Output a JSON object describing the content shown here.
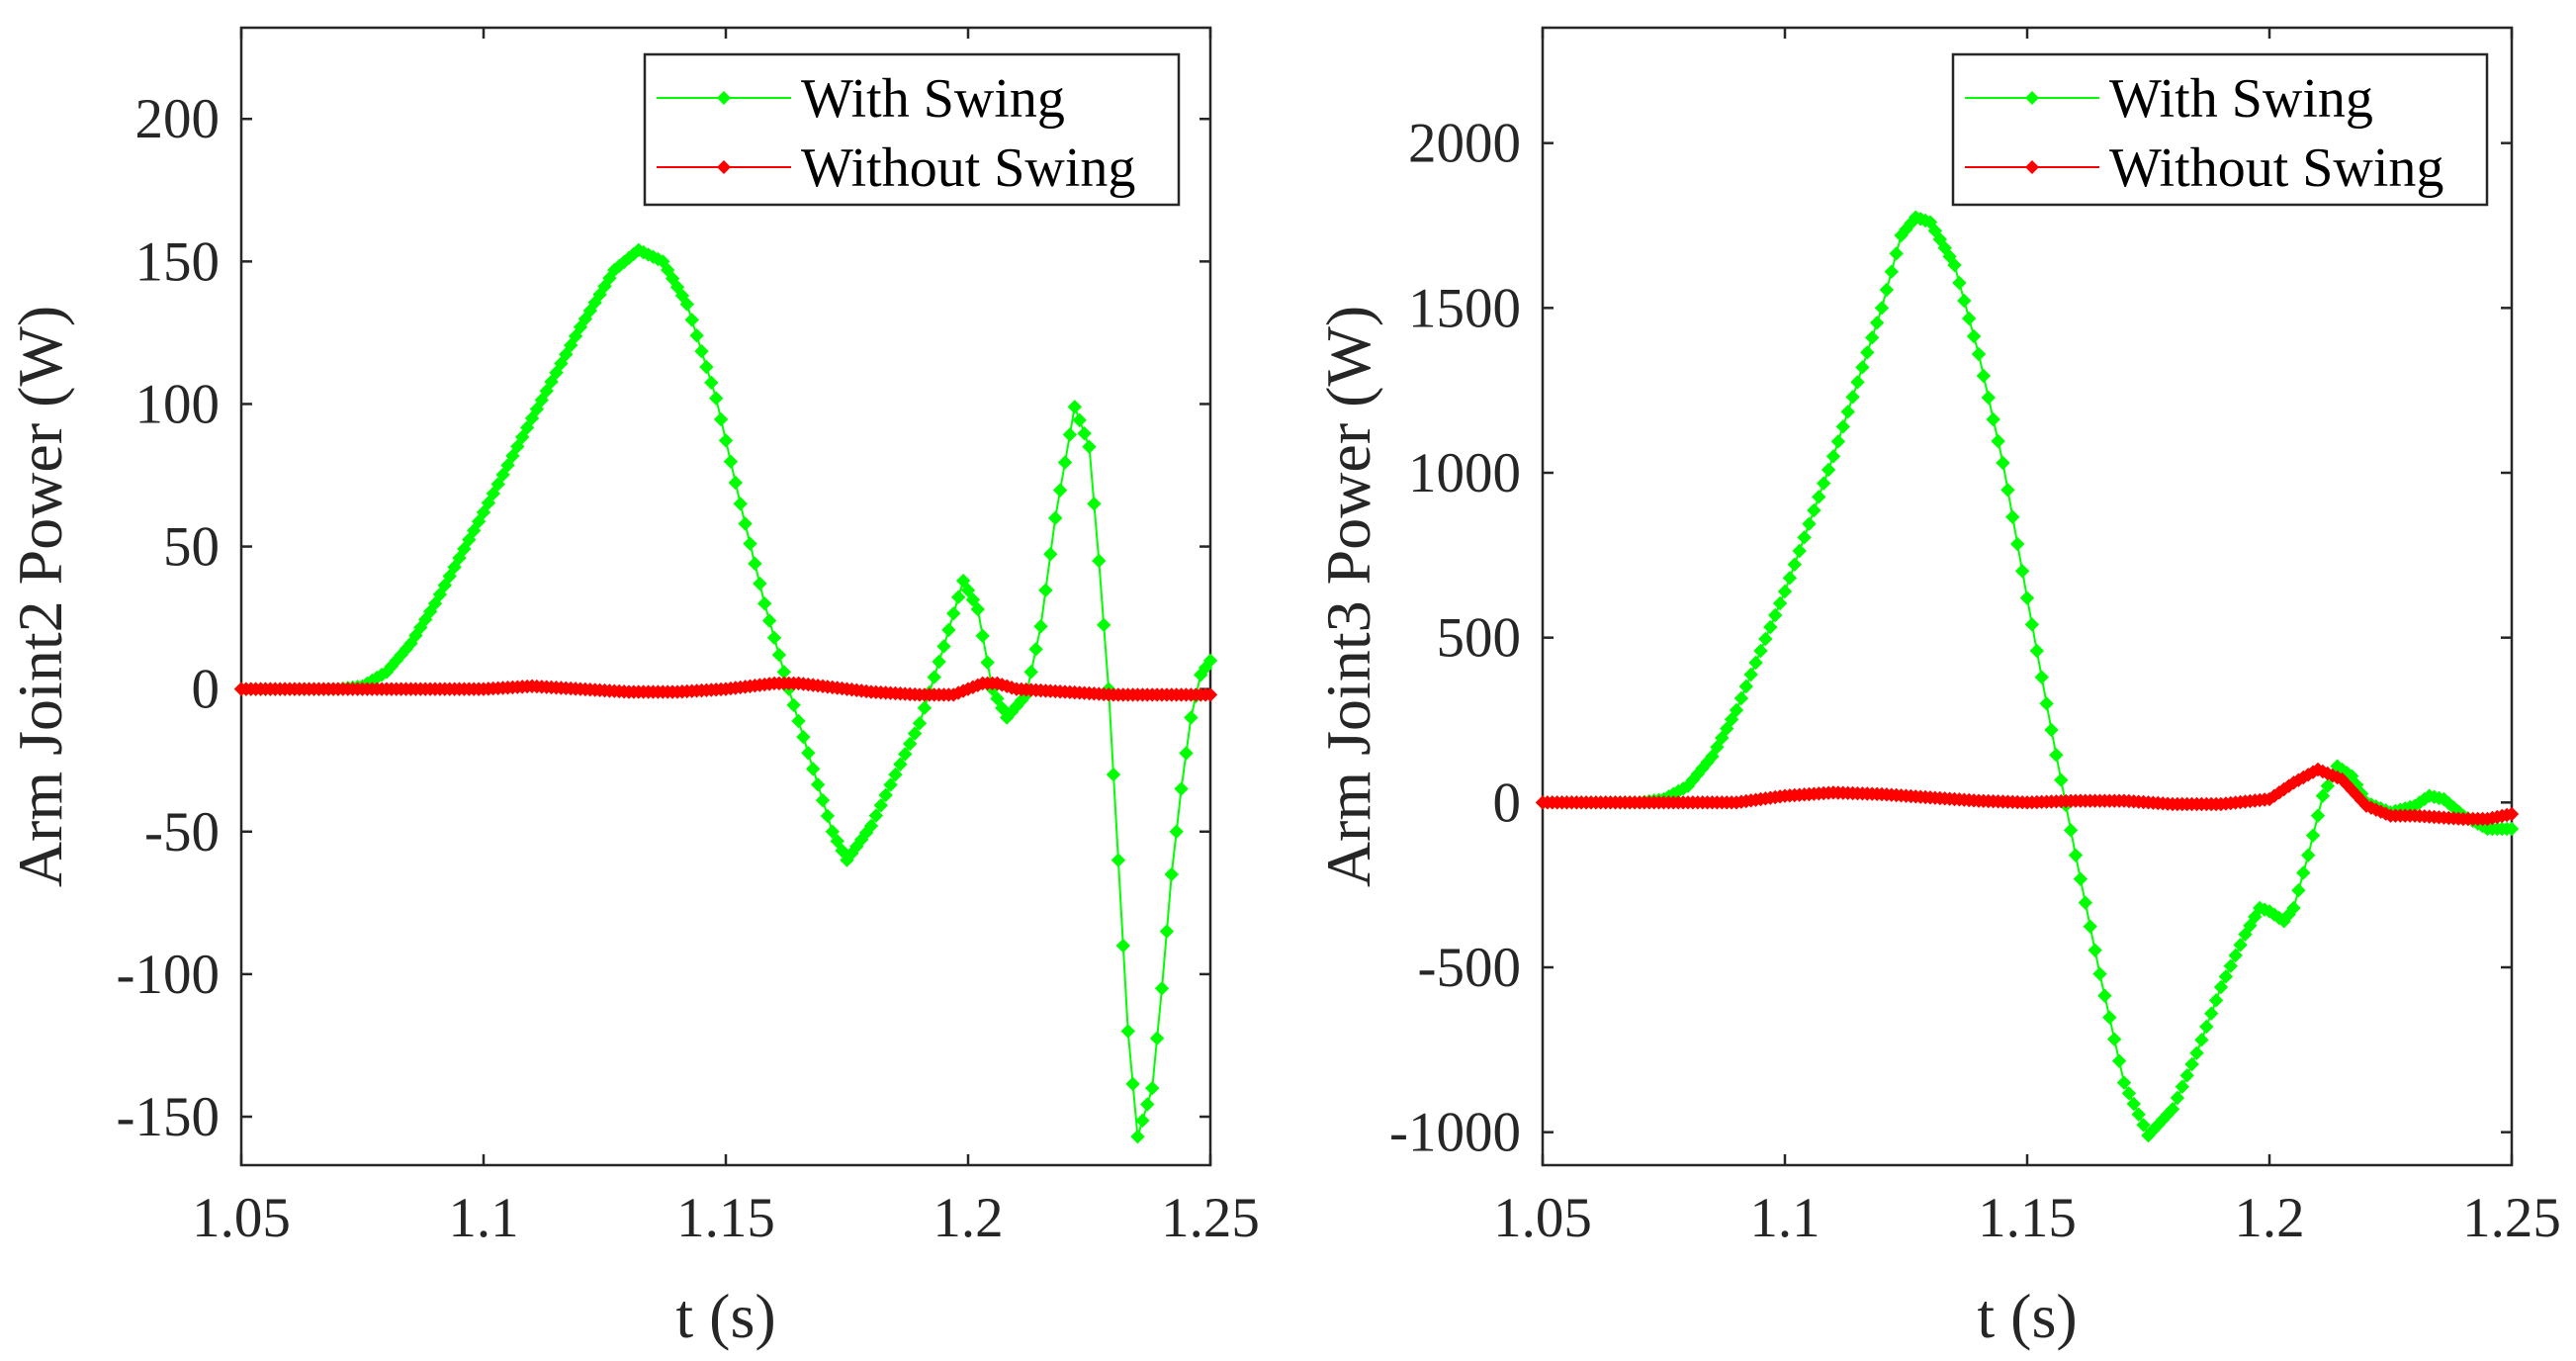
{
  "figure": {
    "charts": 2
  },
  "chart_data": [
    {
      "type": "line",
      "title": "",
      "xlabel": "t (s)",
      "ylabel": "Arm Joint2 Power (W)",
      "xlim": [
        1.05,
        1.25
      ],
      "ylim": [
        -167,
        232
      ],
      "xticks": [
        1.05,
        1.1,
        1.15,
        1.2,
        1.25
      ],
      "xtick_labels": [
        "1.05",
        "1.1",
        "1.15",
        "1.2",
        "1.25"
      ],
      "yticks": [
        200,
        150,
        100,
        50,
        0,
        -50,
        -100,
        -150
      ],
      "ytick_labels": [
        "200",
        "150",
        "100",
        "50",
        "0",
        "-50",
        "-100",
        "-150"
      ],
      "grid": false,
      "legend_position": "top-right",
      "series": [
        {
          "name": "With Swing",
          "color": "#00ff00",
          "marker": "diamond",
          "points": [
            [
              1.05,
              0
            ],
            [
              1.07,
              0
            ],
            [
              1.075,
              1
            ],
            [
              1.08,
              6
            ],
            [
              1.085,
              16
            ],
            [
              1.09,
              30
            ],
            [
              1.1,
              62
            ],
            [
              1.11,
              95
            ],
            [
              1.12,
              127
            ],
            [
              1.127,
              147
            ],
            [
              1.132,
              154
            ],
            [
              1.137,
              150
            ],
            [
              1.142,
              135
            ],
            [
              1.148,
              102
            ],
            [
              1.153,
              65
            ],
            [
              1.158,
              30
            ],
            [
              1.163,
              0
            ],
            [
              1.168,
              -28
            ],
            [
              1.172,
              -50
            ],
            [
              1.175,
              -60
            ],
            [
              1.18,
              -48
            ],
            [
              1.185,
              -30
            ],
            [
              1.19,
              -12
            ],
            [
              1.195,
              15
            ],
            [
              1.199,
              38
            ],
            [
              1.202,
              28
            ],
            [
              1.205,
              0
            ],
            [
              1.208,
              -10
            ],
            [
              1.212,
              -2
            ],
            [
              1.215,
              22
            ],
            [
              1.218,
              60
            ],
            [
              1.222,
              99
            ],
            [
              1.225,
              85
            ],
            [
              1.227,
              45
            ],
            [
              1.229,
              0
            ],
            [
              1.231,
              -60
            ],
            [
              1.233,
              -120
            ],
            [
              1.235,
              -157
            ],
            [
              1.238,
              -140
            ],
            [
              1.24,
              -105
            ],
            [
              1.242,
              -65
            ],
            [
              1.244,
              -35
            ],
            [
              1.246,
              -10
            ],
            [
              1.248,
              5
            ],
            [
              1.25,
              10
            ]
          ]
        },
        {
          "name": "Without Swing",
          "color": "#ff0000",
          "marker": "diamond",
          "points": [
            [
              1.05,
              0
            ],
            [
              1.08,
              0
            ],
            [
              1.1,
              0
            ],
            [
              1.11,
              1
            ],
            [
              1.12,
              0
            ],
            [
              1.13,
              -1
            ],
            [
              1.14,
              -1
            ],
            [
              1.15,
              0
            ],
            [
              1.16,
              2
            ],
            [
              1.165,
              2
            ],
            [
              1.17,
              1
            ],
            [
              1.18,
              -1
            ],
            [
              1.19,
              -2
            ],
            [
              1.197,
              -2
            ],
            [
              1.2,
              0
            ],
            [
              1.203,
              2
            ],
            [
              1.206,
              2
            ],
            [
              1.21,
              0
            ],
            [
              1.22,
              -1
            ],
            [
              1.23,
              -2
            ],
            [
              1.24,
              -2
            ],
            [
              1.25,
              -2
            ]
          ]
        }
      ]
    },
    {
      "type": "line",
      "title": "",
      "xlabel": "t (s)",
      "ylabel": "Arm Joint3 Power (W)",
      "xlim": [
        1.05,
        1.25
      ],
      "ylim": [
        -1100,
        2350
      ],
      "xticks": [
        1.05,
        1.1,
        1.15,
        1.2,
        1.25
      ],
      "xtick_labels": [
        "1.05",
        "1.1",
        "1.15",
        "1.2",
        "1.25"
      ],
      "yticks": [
        2000,
        1500,
        1000,
        500,
        0,
        -500,
        -1000
      ],
      "ytick_labels": [
        "2000",
        "1500",
        "1000",
        "500",
        "0",
        "-500",
        "-1000"
      ],
      "grid": false,
      "legend_position": "top-right",
      "series": [
        {
          "name": "With Swing",
          "color": "#00ff00",
          "marker": "diamond",
          "points": [
            [
              1.05,
              0
            ],
            [
              1.07,
              0
            ],
            [
              1.075,
              10
            ],
            [
              1.08,
              50
            ],
            [
              1.085,
              140
            ],
            [
              1.09,
              280
            ],
            [
              1.1,
              640
            ],
            [
              1.11,
              1050
            ],
            [
              1.12,
              1500
            ],
            [
              1.124,
              1720
            ],
            [
              1.127,
              1775
            ],
            [
              1.13,
              1760
            ],
            [
              1.135,
              1630
            ],
            [
              1.14,
              1360
            ],
            [
              1.145,
              1030
            ],
            [
              1.15,
              620
            ],
            [
              1.155,
              220
            ],
            [
              1.16,
              -160
            ],
            [
              1.165,
              -520
            ],
            [
              1.17,
              -850
            ],
            [
              1.175,
              -1010
            ],
            [
              1.18,
              -930
            ],
            [
              1.185,
              -760
            ],
            [
              1.19,
              -560
            ],
            [
              1.195,
              -400
            ],
            [
              1.198,
              -320
            ],
            [
              1.2,
              -330
            ],
            [
              1.203,
              -360
            ],
            [
              1.205,
              -320
            ],
            [
              1.208,
              -160
            ],
            [
              1.211,
              20
            ],
            [
              1.214,
              110
            ],
            [
              1.217,
              80
            ],
            [
              1.22,
              0
            ],
            [
              1.225,
              -30
            ],
            [
              1.23,
              -10
            ],
            [
              1.233,
              20
            ],
            [
              1.236,
              10
            ],
            [
              1.24,
              -40
            ],
            [
              1.245,
              -80
            ],
            [
              1.25,
              -80
            ]
          ]
        },
        {
          "name": "Without Swing",
          "color": "#ff0000",
          "marker": "diamond",
          "points": [
            [
              1.05,
              0
            ],
            [
              1.09,
              0
            ],
            [
              1.1,
              20
            ],
            [
              1.11,
              30
            ],
            [
              1.12,
              25
            ],
            [
              1.13,
              15
            ],
            [
              1.14,
              5
            ],
            [
              1.15,
              0
            ],
            [
              1.16,
              5
            ],
            [
              1.17,
              5
            ],
            [
              1.18,
              -5
            ],
            [
              1.19,
              -5
            ],
            [
              1.2,
              10
            ],
            [
              1.205,
              60
            ],
            [
              1.21,
              100
            ],
            [
              1.215,
              70
            ],
            [
              1.22,
              -10
            ],
            [
              1.225,
              -40
            ],
            [
              1.23,
              -40
            ],
            [
              1.24,
              -50
            ],
            [
              1.245,
              -50
            ],
            [
              1.25,
              -35
            ]
          ]
        }
      ]
    }
  ]
}
